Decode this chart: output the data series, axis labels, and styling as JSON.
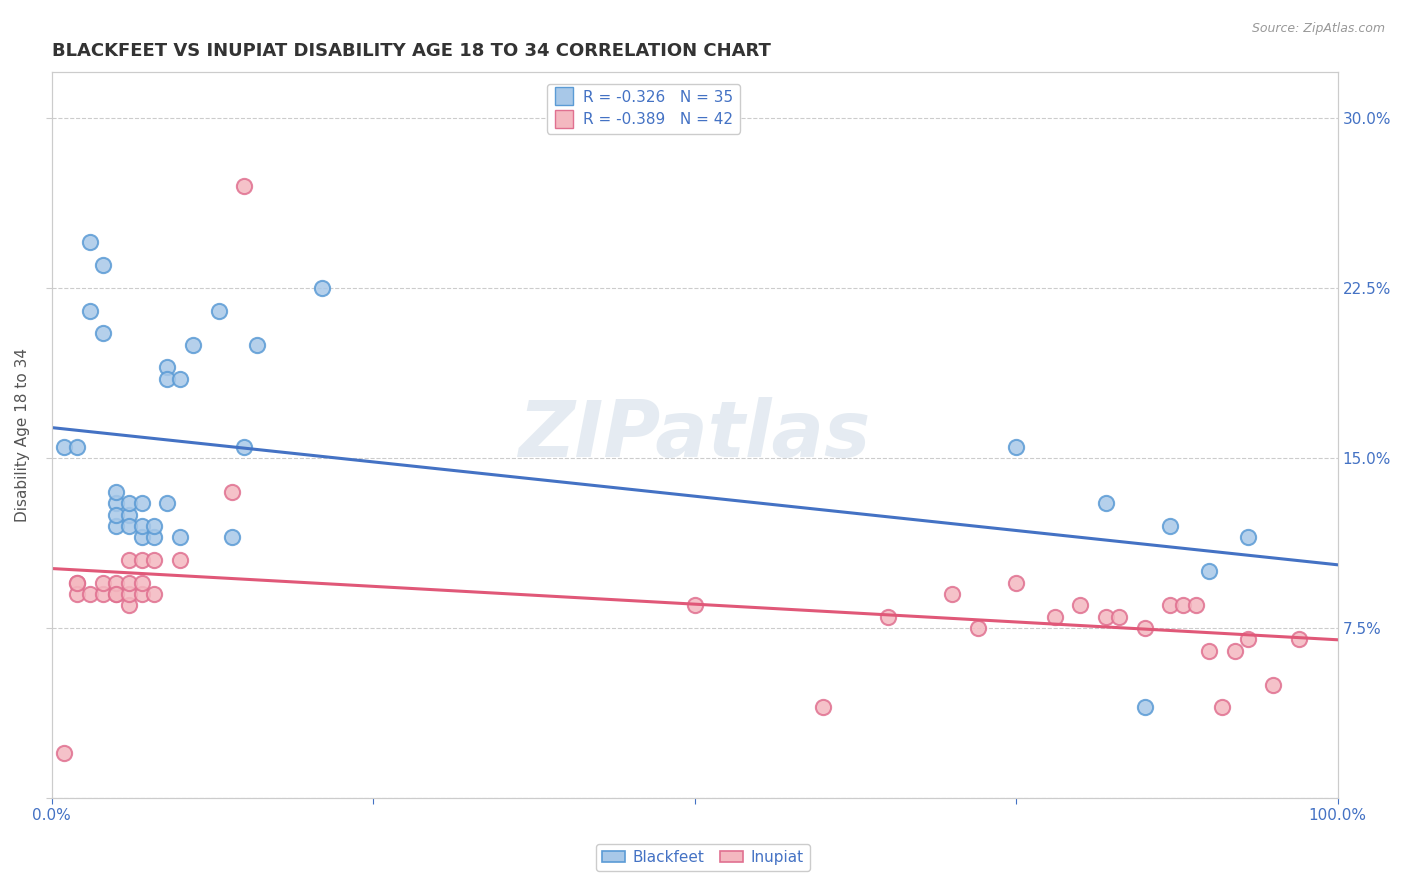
{
  "title": "BLACKFEET VS INUPIAT DISABILITY AGE 18 TO 34 CORRELATION CHART",
  "source": "Source: ZipAtlas.com",
  "xlabel": "",
  "ylabel": "Disability Age 18 to 34",
  "xlim": [
    0,
    1.0
  ],
  "ylim": [
    0,
    0.32
  ],
  "xticks": [
    0.0,
    0.25,
    0.5,
    0.75,
    1.0
  ],
  "xticklabels": [
    "0.0%",
    "",
    "",
    "",
    "100.0%"
  ],
  "yticks": [
    0.0,
    0.075,
    0.15,
    0.225,
    0.3
  ],
  "yticklabels": [
    "",
    "7.5%",
    "15.0%",
    "22.5%",
    "30.0%"
  ],
  "legend1_label": "R = -0.326   N = 35",
  "legend2_label": "R = -0.389   N = 42",
  "legend_xlabel": "Blackfeet",
  "legend_ylabel": "Inupiat",
  "blue_color": "#a8c8e8",
  "pink_color": "#f4b8c0",
  "blue_edge_color": "#5b9bd5",
  "pink_edge_color": "#e07090",
  "blue_line_color": "#4472c4",
  "pink_line_color": "#e05878",
  "title_color": "#333333",
  "axis_color": "#4472c4",
  "grid_color": "#cccccc",
  "watermark": "ZIPatlas",
  "blackfeet_x": [
    0.01,
    0.02,
    0.03,
    0.03,
    0.04,
    0.04,
    0.05,
    0.05,
    0.05,
    0.05,
    0.06,
    0.06,
    0.06,
    0.07,
    0.07,
    0.07,
    0.08,
    0.08,
    0.09,
    0.09,
    0.09,
    0.1,
    0.1,
    0.11,
    0.13,
    0.14,
    0.15,
    0.16,
    0.21,
    0.75,
    0.82,
    0.85,
    0.87,
    0.9,
    0.93
  ],
  "blackfeet_y": [
    0.155,
    0.155,
    0.245,
    0.215,
    0.235,
    0.205,
    0.13,
    0.135,
    0.12,
    0.125,
    0.125,
    0.12,
    0.13,
    0.115,
    0.12,
    0.13,
    0.115,
    0.12,
    0.19,
    0.185,
    0.13,
    0.115,
    0.185,
    0.2,
    0.215,
    0.115,
    0.155,
    0.2,
    0.225,
    0.155,
    0.13,
    0.04,
    0.12,
    0.1,
    0.115
  ],
  "inupiat_x": [
    0.01,
    0.02,
    0.02,
    0.02,
    0.03,
    0.04,
    0.04,
    0.05,
    0.05,
    0.05,
    0.06,
    0.06,
    0.06,
    0.06,
    0.07,
    0.07,
    0.07,
    0.08,
    0.08,
    0.1,
    0.14,
    0.15,
    0.5,
    0.6,
    0.65,
    0.7,
    0.72,
    0.75,
    0.78,
    0.8,
    0.82,
    0.83,
    0.85,
    0.87,
    0.88,
    0.89,
    0.9,
    0.91,
    0.92,
    0.93,
    0.95,
    0.97
  ],
  "inupiat_y": [
    0.02,
    0.095,
    0.09,
    0.095,
    0.09,
    0.09,
    0.095,
    0.09,
    0.095,
    0.09,
    0.085,
    0.09,
    0.095,
    0.105,
    0.09,
    0.095,
    0.105,
    0.09,
    0.105,
    0.105,
    0.135,
    0.27,
    0.085,
    0.04,
    0.08,
    0.09,
    0.075,
    0.095,
    0.08,
    0.085,
    0.08,
    0.08,
    0.075,
    0.085,
    0.085,
    0.085,
    0.065,
    0.04,
    0.065,
    0.07,
    0.05,
    0.07
  ]
}
